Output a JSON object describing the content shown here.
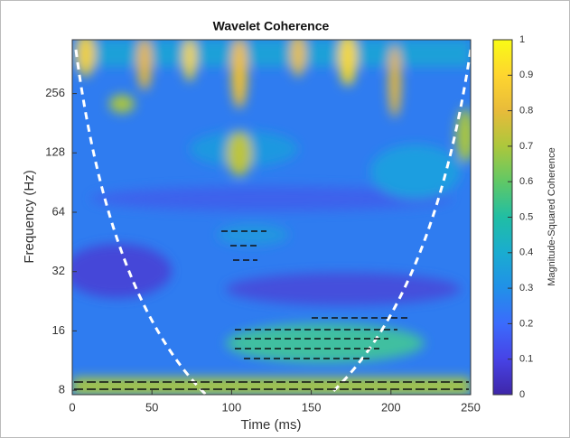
{
  "chart_data": {
    "type": "heatmap",
    "title": "Wavelet Coherence",
    "xlabel": "Time (ms)",
    "ylabel": "Frequency (Hz)",
    "colorbar_label": "Magnitude-Squared Coherence",
    "xlim": [
      0,
      250
    ],
    "xticks": [
      0,
      50,
      100,
      150,
      200,
      250
    ],
    "ylim": [
      7.6,
      480
    ],
    "yticks": [
      8,
      16,
      32,
      64,
      128,
      256
    ],
    "ylog": true,
    "clim": [
      0,
      1
    ],
    "cticks": [
      0,
      0.1,
      0.2,
      0.3,
      0.4,
      0.5,
      0.6,
      0.7,
      0.8,
      0.9,
      1
    ],
    "colormap": [
      "#3e26a8",
      "#4743e6",
      "#3b6bfc",
      "#2190e8",
      "#1aacd0",
      "#20bea4",
      "#60c866",
      "#acc73c",
      "#e8bb3a",
      "#fed52f",
      "#f9fb15"
    ]
  }
}
